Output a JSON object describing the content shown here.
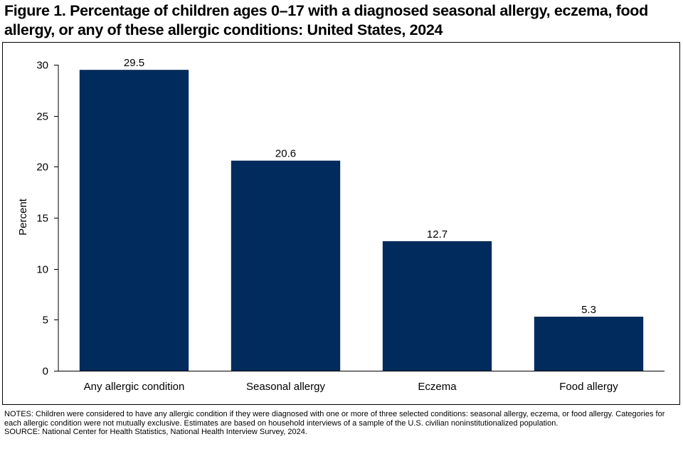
{
  "figure": {
    "title": "Figure 1. Percentage of children ages 0–17 with a diagnosed seasonal allergy, eczema, food allergy, or any of these allergic conditions: United States, 2024"
  },
  "chart_data": {
    "type": "bar",
    "categories": [
      "Any allergic condition",
      "Seasonal allergy",
      "Eczema",
      "Food allergy"
    ],
    "values": [
      29.5,
      20.6,
      12.7,
      5.3
    ],
    "data_labels": [
      "29.5",
      "20.6",
      "12.7",
      "5.3"
    ],
    "ylabel": "Percent",
    "xlabel": "",
    "ylim": [
      0,
      30
    ],
    "yticks": [
      0,
      5,
      10,
      15,
      20,
      25,
      30
    ],
    "grid": false,
    "legend": "none",
    "bar_color": "#002B5C"
  },
  "notes": {
    "notes_text": "NOTES: Children were considered to have any allergic condition if they were diagnosed with one or more of three selected conditions: seasonal allergy, eczema, or food allergy. Categories for each allergic condition were not mutually exclusive. Estimates are based on household interviews of a sample of the U.S. civilian noninstitutionalized population.",
    "source_text": "SOURCE: National Center for Health Statistics, National Health Interview Survey, 2024."
  }
}
